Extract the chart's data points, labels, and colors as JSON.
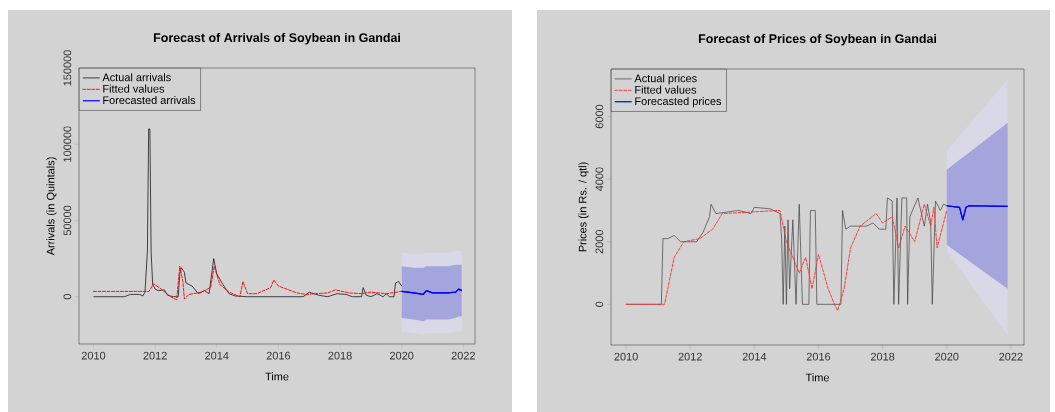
{
  "chart_data": [
    {
      "type": "line",
      "title": "Forecast of Arrivals of Soybean in Gandai",
      "xlabel": "Time",
      "ylabel": "Arrivals (in Quintals)",
      "xlim": [
        2009.53,
        2022.38
      ],
      "ylim": [
        -31000,
        150000
      ],
      "xticks": [
        2010,
        2012,
        2014,
        2016,
        2018,
        2020,
        2022
      ],
      "yticks": [
        0,
        50000,
        100000,
        150000
      ],
      "legend": "top left",
      "grid": false,
      "marker": "none",
      "series": [
        {
          "name": "Actual arrivals",
          "color": "#000000",
          "line_style": "solid",
          "x": [
            2010,
            2011.0,
            2011.2,
            2011.5,
            2011.6,
            2011.67,
            2011.75,
            2011.79,
            2011.83,
            2011.87,
            2011.92,
            2012.0,
            2012.1,
            2012.3,
            2012.4,
            2012.6,
            2012.75,
            2012.8,
            2012.85,
            2012.95,
            2013.0,
            2013.2,
            2013.4,
            2013.6,
            2013.75,
            2013.9,
            2014.0,
            2014.2,
            2014.4,
            2014.6,
            2015,
            2016,
            2016.8,
            2017.0,
            2017.3,
            2017.6,
            2017.9,
            2018.2,
            2018.4,
            2018.7,
            2018.75,
            2018.85,
            2019.0,
            2019.2,
            2019.4,
            2019.5,
            2019.6,
            2019.75,
            2019.8,
            2019.9,
            2020.0
          ],
          "values": [
            0,
            0,
            1500,
            1500,
            500,
            3000,
            30000,
            110000,
            110000,
            30000,
            8000,
            5000,
            4000,
            4500,
            1000,
            0,
            0,
            15000,
            19000,
            16000,
            9000,
            7000,
            2000,
            4000,
            2000,
            25000,
            15000,
            8000,
            2000,
            500,
            0,
            0,
            0,
            3000,
            1000,
            0,
            2000,
            1500,
            0,
            0,
            6000,
            1000,
            0,
            2000,
            0,
            2000,
            0,
            0,
            9000,
            10000,
            7000
          ]
        },
        {
          "name": "Fitted values",
          "color": "#ff0000",
          "line_style": "dashed",
          "x": [
            2010,
            2011,
            2011.8,
            2011.95,
            2012.2,
            2012.5,
            2012.7,
            2012.8,
            2012.9,
            2012.95,
            2013.1,
            2013.5,
            2013.8,
            2013.92,
            2014.1,
            2014.4,
            2014.75,
            2014.85,
            2015.0,
            2015.3,
            2015.75,
            2015.85,
            2016.0,
            2016.6,
            2016.9,
            2017.2,
            2017.6,
            2017.85,
            2018.3,
            2018.7,
            2019,
            2019.5,
            2020
          ],
          "values": [
            3500,
            3500,
            3500,
            8500,
            5000,
            0,
            -2000,
            20000,
            10000,
            -1500,
            1500,
            3000,
            6000,
            20000,
            8000,
            3000,
            0,
            10000,
            2000,
            2000,
            6000,
            11000,
            7000,
            2500,
            1500,
            2000,
            2500,
            4500,
            2500,
            2000,
            3000,
            2000,
            3500
          ]
        },
        {
          "color": "#0000ff",
          "line_style": "solid",
          "x": [
            2020.0,
            2020.4,
            2020.7,
            2020.8,
            2021.0,
            2021.5,
            2021.75,
            2021.85,
            2021.95
          ],
          "values": [
            3500,
            2500,
            1500,
            4000,
            2500,
            2500,
            3000,
            5000,
            4000
          ],
          "lower": [
            -23000,
            -24000,
            -25000,
            -24000,
            -24000,
            -24000,
            -23000,
            -23000,
            -23000
          ],
          "upper": [
            29000,
            28000,
            28000,
            29000,
            29000,
            29000,
            30000,
            30000,
            30000
          ]
        },
        {
          "name": "Forecasted arrivals",
          "color": "#0000ff",
          "line_style": "solid",
          "x": [
            2020.0,
            2020.4,
            2020.7,
            2020.8,
            2021.0,
            2021.5,
            2021.75,
            2021.85,
            2021.95
          ],
          "values": [
            3500,
            2500,
            1500,
            4000,
            2500,
            2500,
            3000,
            5000,
            4000
          ],
          "lower": [
            -14000,
            -15000,
            -16000,
            -15000,
            -15000,
            -15000,
            -14000,
            -13000,
            -13000
          ],
          "upper": [
            20000,
            19000,
            19000,
            20000,
            20000,
            20000,
            21000,
            21000,
            21000
          ]
        }
      ]
    },
    {
      "type": "line",
      "title": "Forecast of Prices of Soybean in Gandai",
      "xlabel": "Time",
      "ylabel": "Prices (in Rs. / qtl)",
      "xlim": [
        2009.53,
        2022.41
      ],
      "ylim": [
        -1300,
        7520
      ],
      "xticks": [
        2010,
        2012,
        2014,
        2016,
        2018,
        2020,
        2022
      ],
      "yticks": [
        0,
        2000,
        4000,
        6000
      ],
      "legend": "top left",
      "grid": false,
      "marker": "none",
      "series": [
        {
          "name": "Actual prices",
          "color": "#404040",
          "line_style": "solid",
          "x": [
            2010,
            2011.1,
            2011.15,
            2011.3,
            2011.5,
            2011.7,
            2012.2,
            2012.4,
            2012.6,
            2012.65,
            2012.8,
            2013.5,
            2013.9,
            2014.0,
            2014.5,
            2014.8,
            2014.85,
            2014.9,
            2014.95,
            2015.0,
            2015.05,
            2015.1,
            2015.2,
            2015.3,
            2015.4,
            2015.5,
            2015.7,
            2015.75,
            2015.9,
            2015.95,
            2016.7,
            2016.75,
            2016.85,
            2017.0,
            2017.5,
            2017.7,
            2017.9,
            2018.1,
            2018.15,
            2018.3,
            2018.35,
            2018.45,
            2018.5,
            2018.6,
            2018.75,
            2018.78,
            2018.85,
            2019.1,
            2019.3,
            2019.4,
            2019.5,
            2019.55,
            2019.65,
            2019.8,
            2019.9,
            2020.0
          ],
          "values": [
            0,
            0,
            2100,
            2100,
            2200,
            2000,
            2000,
            2300,
            2800,
            3200,
            2900,
            3000,
            2900,
            3100,
            3050,
            2900,
            2100,
            0,
            2500,
            0,
            2700,
            500,
            2700,
            0,
            3200,
            0,
            0,
            3000,
            3000,
            0,
            0,
            3000,
            2400,
            2500,
            2500,
            2600,
            2400,
            2400,
            3400,
            3300,
            0,
            3400,
            0,
            3400,
            3400,
            0,
            2800,
            3400,
            2500,
            3200,
            2600,
            0,
            3300,
            3000,
            3200,
            3150
          ]
        },
        {
          "name": "Fitted values",
          "color": "#ff3030",
          "line_style": "dashed",
          "x": [
            2010,
            2011.2,
            2011.5,
            2011.8,
            2012.3,
            2012.7,
            2013.0,
            2014.8,
            2015.0,
            2015.2,
            2015.4,
            2015.6,
            2015.8,
            2016.0,
            2016.3,
            2016.5,
            2016.6,
            2016.8,
            2017.0,
            2017.3,
            2017.8,
            2018.0,
            2018.3,
            2018.5,
            2018.7,
            2019.0,
            2019.3,
            2019.5,
            2019.6,
            2019.7,
            2020.0
          ],
          "values": [
            0,
            0,
            1500,
            2000,
            2100,
            2400,
            2900,
            3000,
            2000,
            1500,
            1000,
            1500,
            500,
            1600,
            500,
            0,
            -200,
            500,
            1800,
            2500,
            2900,
            2600,
            2800,
            1800,
            2500,
            2000,
            3200,
            2500,
            3100,
            1800,
            3000
          ]
        },
        {
          "color": "#0000ff",
          "line_style": "solid",
          "x": [
            2020.0,
            2020.4,
            2020.5,
            2020.6,
            2020.7,
            2021.9
          ],
          "values": [
            3150,
            3100,
            2700,
            3100,
            3150,
            3130
          ],
          "lower": [
            1700,
            1130,
            990,
            850,
            700,
            -1000
          ],
          "upper": [
            4900,
            5380,
            5500,
            5620,
            5750,
            7200
          ]
        },
        {
          "name": "Forecasted prices",
          "color": "#0000ff",
          "line_style": "solid",
          "x": [
            2020.0,
            2020.4,
            2020.5,
            2020.6,
            2020.7,
            2021.9
          ],
          "values": [
            3150,
            3100,
            2700,
            3100,
            3150,
            3130
          ],
          "lower": [
            1900,
            1600,
            1530,
            1460,
            1380,
            500
          ],
          "upper": [
            4300,
            4620,
            4700,
            4770,
            4850,
            5800
          ]
        }
      ]
    }
  ]
}
